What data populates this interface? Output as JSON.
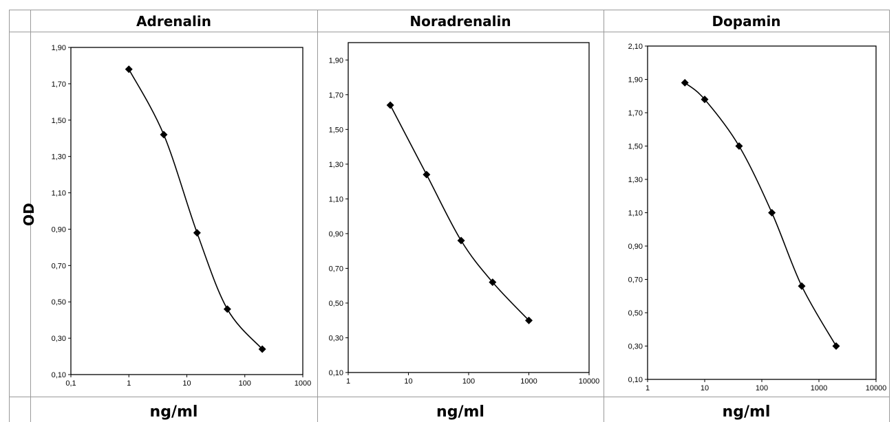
{
  "row_label": "OD",
  "chart_data": [
    {
      "type": "line",
      "title": "Adrenalin",
      "xlabel": "ng/ml",
      "ylabel": "OD",
      "xscale": "log",
      "xlim": [
        0.1,
        1000
      ],
      "xticks": [
        "0,1",
        "1",
        "10",
        "100",
        "1000"
      ],
      "ylim": [
        0.1,
        1.9
      ],
      "yticks": [
        "0,10",
        "0,30",
        "0,50",
        "0,70",
        "0,90",
        "1,10",
        "1,30",
        "1,50",
        "1,70",
        "1,90"
      ],
      "grid": false,
      "series": [
        {
          "x": [
            1,
            4,
            15,
            50,
            200
          ],
          "y": [
            1.78,
            1.42,
            0.88,
            0.46,
            0.24
          ]
        }
      ]
    },
    {
      "type": "line",
      "title": "Noradrenalin",
      "xlabel": "ng/ml",
      "ylabel": "OD",
      "xscale": "log",
      "xlim": [
        1,
        10000
      ],
      "xticks": [
        "1",
        "10",
        "100",
        "1000",
        "10000"
      ],
      "ylim": [
        0.1,
        2.0
      ],
      "yticks": [
        "0,10",
        "0,30",
        "0,50",
        "0,70",
        "0,90",
        "1,10",
        "1,30",
        "1,50",
        "1,70",
        "1,90"
      ],
      "grid": false,
      "series": [
        {
          "x": [
            5,
            20,
            75,
            250,
            1000
          ],
          "y": [
            1.64,
            1.24,
            0.86,
            0.62,
            0.4
          ]
        }
      ]
    },
    {
      "type": "line",
      "title": "Dopamin",
      "xlabel": "ng/ml",
      "ylabel": "OD",
      "xscale": "log",
      "xlim": [
        1,
        10000
      ],
      "xticks": [
        "1",
        "10",
        "100",
        "1000",
        "10000"
      ],
      "ylim": [
        0.1,
        2.1
      ],
      "yticks": [
        "0,10",
        "0,30",
        "0,50",
        "0,70",
        "0,90",
        "1,10",
        "1,30",
        "1,50",
        "1,70",
        "1,90",
        "2,10"
      ],
      "grid": false,
      "series": [
        {
          "x": [
            4.5,
            10,
            40,
            150,
            500,
            2000
          ],
          "y": [
            1.88,
            1.78,
            1.5,
            1.1,
            0.66,
            0.3
          ]
        }
      ]
    }
  ]
}
